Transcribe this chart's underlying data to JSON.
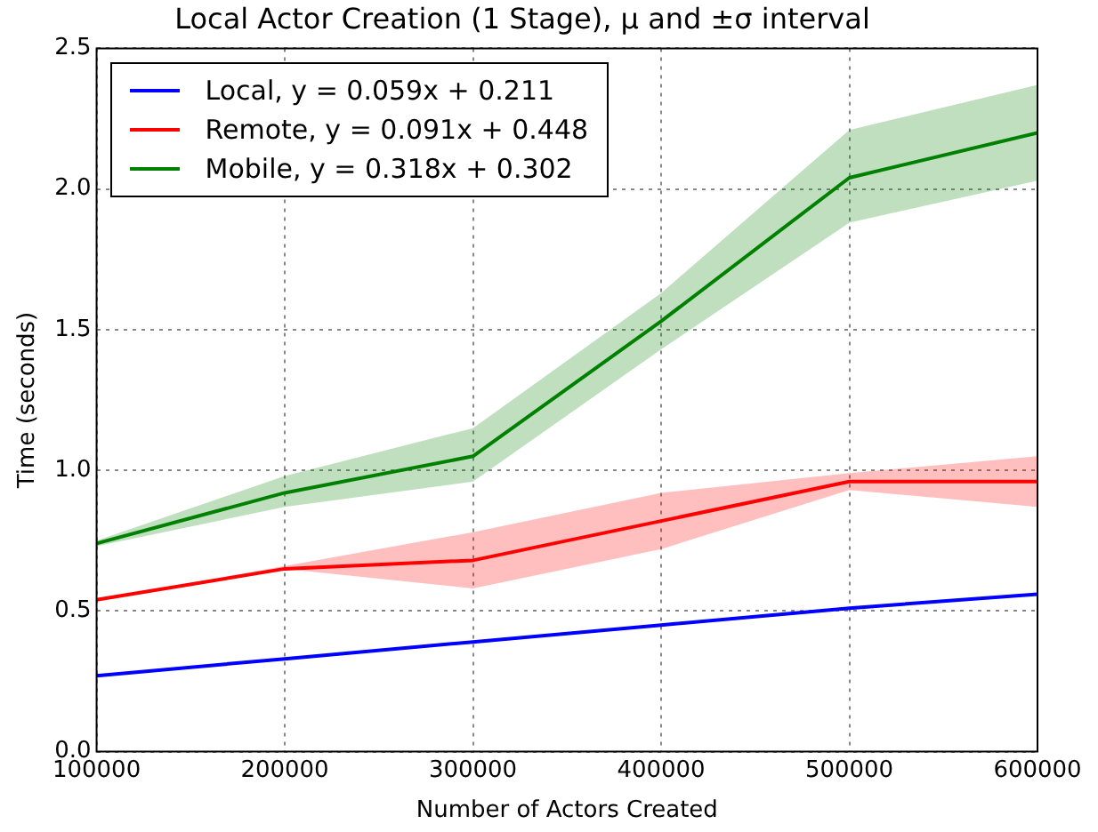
{
  "chart_data": {
    "type": "line",
    "title": "Local Actor Creation (1 Stage), μ and ±σ interval",
    "xlabel": "Number of Actors Created",
    "ylabel": "Time (seconds)",
    "x": [
      100000,
      200000,
      300000,
      400000,
      500000,
      600000
    ],
    "series": [
      {
        "name": "Local, y = 0.059x + 0.211",
        "color": "#0000ff",
        "values": [
          0.27,
          0.33,
          0.39,
          0.45,
          0.51,
          0.56
        ]
      },
      {
        "name": "Remote, y = 0.091x + 0.448",
        "color": "#ff0000",
        "values": [
          0.54,
          0.65,
          0.68,
          0.82,
          0.96,
          0.96
        ],
        "lower": [
          0.54,
          0.65,
          0.58,
          0.72,
          0.93,
          0.87
        ],
        "upper": [
          0.54,
          0.66,
          0.78,
          0.92,
          0.99,
          1.05
        ]
      },
      {
        "name": "Mobile, y = 0.318x + 0.302",
        "color": "#008000",
        "values": [
          0.74,
          0.92,
          1.05,
          1.53,
          2.04,
          2.2
        ],
        "lower": [
          0.73,
          0.87,
          0.96,
          1.43,
          1.88,
          2.03
        ],
        "upper": [
          0.75,
          0.98,
          1.15,
          1.63,
          2.21,
          2.37
        ]
      }
    ],
    "xlim": [
      100000,
      600000
    ],
    "xticks": [
      100000,
      200000,
      300000,
      400000,
      500000,
      600000
    ],
    "ylim": [
      0,
      2.5
    ],
    "yticks": [
      {
        "value": 0,
        "label": "0.0"
      },
      {
        "value": 0.5,
        "label": "0.5"
      },
      {
        "value": 1,
        "label": "1.0"
      },
      {
        "value": 1.5,
        "label": "1.5"
      },
      {
        "value": 2,
        "label": "2.0"
      },
      {
        "value": 2.5,
        "label": "2.5"
      }
    ],
    "grid": true,
    "legend": "top left",
    "line_style": "solid",
    "marker": "none"
  }
}
